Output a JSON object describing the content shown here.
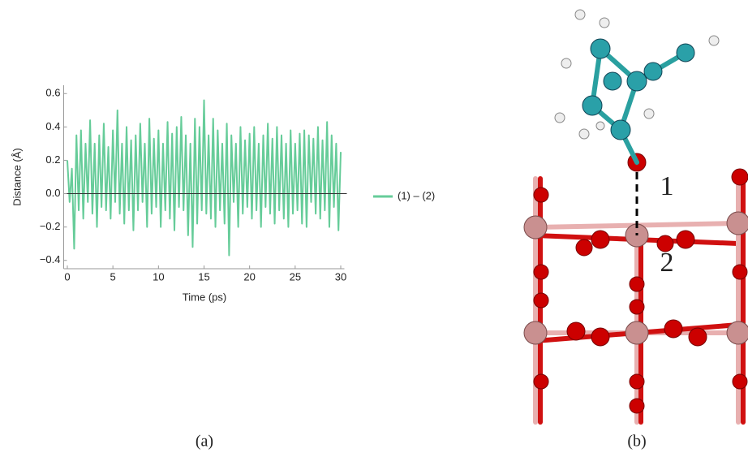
{
  "chart_data": {
    "type": "line",
    "x_label": "Time (ps)",
    "y_label": "Distance (Å)",
    "x": [
      0,
      0.25,
      0.5,
      0.75,
      1,
      1.25,
      1.5,
      1.75,
      2,
      2.25,
      2.5,
      2.75,
      3,
      3.25,
      3.5,
      3.75,
      4,
      4.25,
      4.5,
      4.75,
      5,
      5.25,
      5.5,
      5.75,
      6,
      6.25,
      6.5,
      6.75,
      7,
      7.25,
      7.5,
      7.75,
      8,
      8.25,
      8.5,
      8.75,
      9,
      9.25,
      9.5,
      9.75,
      10,
      10.25,
      10.5,
      10.75,
      11,
      11.25,
      11.5,
      11.75,
      12,
      12.25,
      12.5,
      12.75,
      13,
      13.25,
      13.5,
      13.75,
      14,
      14.25,
      14.5,
      14.75,
      15,
      15.25,
      15.5,
      15.75,
      16,
      16.25,
      16.5,
      16.75,
      17,
      17.25,
      17.5,
      17.75,
      18,
      18.25,
      18.5,
      18.75,
      19,
      19.25,
      19.5,
      19.75,
      20,
      20.25,
      20.5,
      20.75,
      21,
      21.25,
      21.5,
      21.75,
      22,
      22.25,
      22.5,
      22.75,
      23,
      23.25,
      23.5,
      23.75,
      24,
      24.25,
      24.5,
      24.75,
      25,
      25.25,
      25.5,
      25.75,
      26,
      26.25,
      26.5,
      26.75,
      27,
      27.25,
      27.5,
      27.75,
      28,
      28.25,
      28.5,
      28.75,
      29,
      29.25,
      29.5,
      29.75,
      30
    ],
    "series": [
      {
        "name": "(1) – (2)",
        "color": "#66cc99",
        "values": [
          0.2,
          -0.05,
          0.15,
          -0.33,
          0.35,
          -0.1,
          0.38,
          -0.15,
          0.3,
          -0.05,
          0.44,
          -0.12,
          0.3,
          -0.2,
          0.35,
          -0.08,
          0.42,
          -0.1,
          0.28,
          -0.15,
          0.38,
          -0.05,
          0.5,
          -0.12,
          0.3,
          -0.18,
          0.4,
          -0.1,
          0.32,
          -0.22,
          0.35,
          -0.1,
          0.42,
          -0.05,
          0.3,
          -0.2,
          0.45,
          -0.12,
          0.33,
          -0.08,
          0.38,
          -0.2,
          0.3,
          -0.1,
          0.43,
          -0.15,
          0.36,
          -0.22,
          0.4,
          -0.08,
          0.46,
          -0.1,
          0.35,
          -0.25,
          0.3,
          -0.32,
          0.45,
          -0.18,
          0.4,
          -0.1,
          0.56,
          -0.12,
          0.35,
          -0.15,
          0.45,
          -0.2,
          0.38,
          -0.1,
          0.3,
          -0.18,
          0.42,
          -0.37,
          0.35,
          -0.05,
          0.3,
          -0.2,
          0.4,
          -0.12,
          0.32,
          -0.08,
          0.36,
          -0.15,
          0.4,
          -0.1,
          0.3,
          -0.2,
          0.35,
          -0.08,
          0.42,
          -0.12,
          0.33,
          -0.18,
          0.4,
          -0.1,
          0.35,
          -0.15,
          0.3,
          -0.2,
          0.38,
          -0.12,
          0.3,
          -0.1,
          0.36,
          -0.18,
          0.38,
          -0.2,
          0.35,
          -0.05,
          0.33,
          -0.12,
          0.4,
          -0.15,
          0.32,
          -0.1,
          0.43,
          -0.2,
          0.35,
          -0.08,
          0.3,
          -0.22,
          0.25
        ]
      }
    ],
    "xlim": [
      -0.4,
      30.4
    ],
    "ylim": [
      -0.45,
      0.65
    ],
    "xticks": [
      0,
      5,
      10,
      15,
      20,
      25,
      30
    ],
    "yticks": [
      {
        "value": -0.4,
        "label": "−0.4"
      },
      {
        "value": -0.2,
        "label": "−0.2"
      },
      {
        "value": 0,
        "label": "0.0"
      },
      0.2,
      0.4,
      0.6
    ],
    "legend": "right"
  },
  "panel_labels": [
    "(a)",
    "(b)"
  ],
  "structure_labels": [
    "1",
    "2"
  ]
}
